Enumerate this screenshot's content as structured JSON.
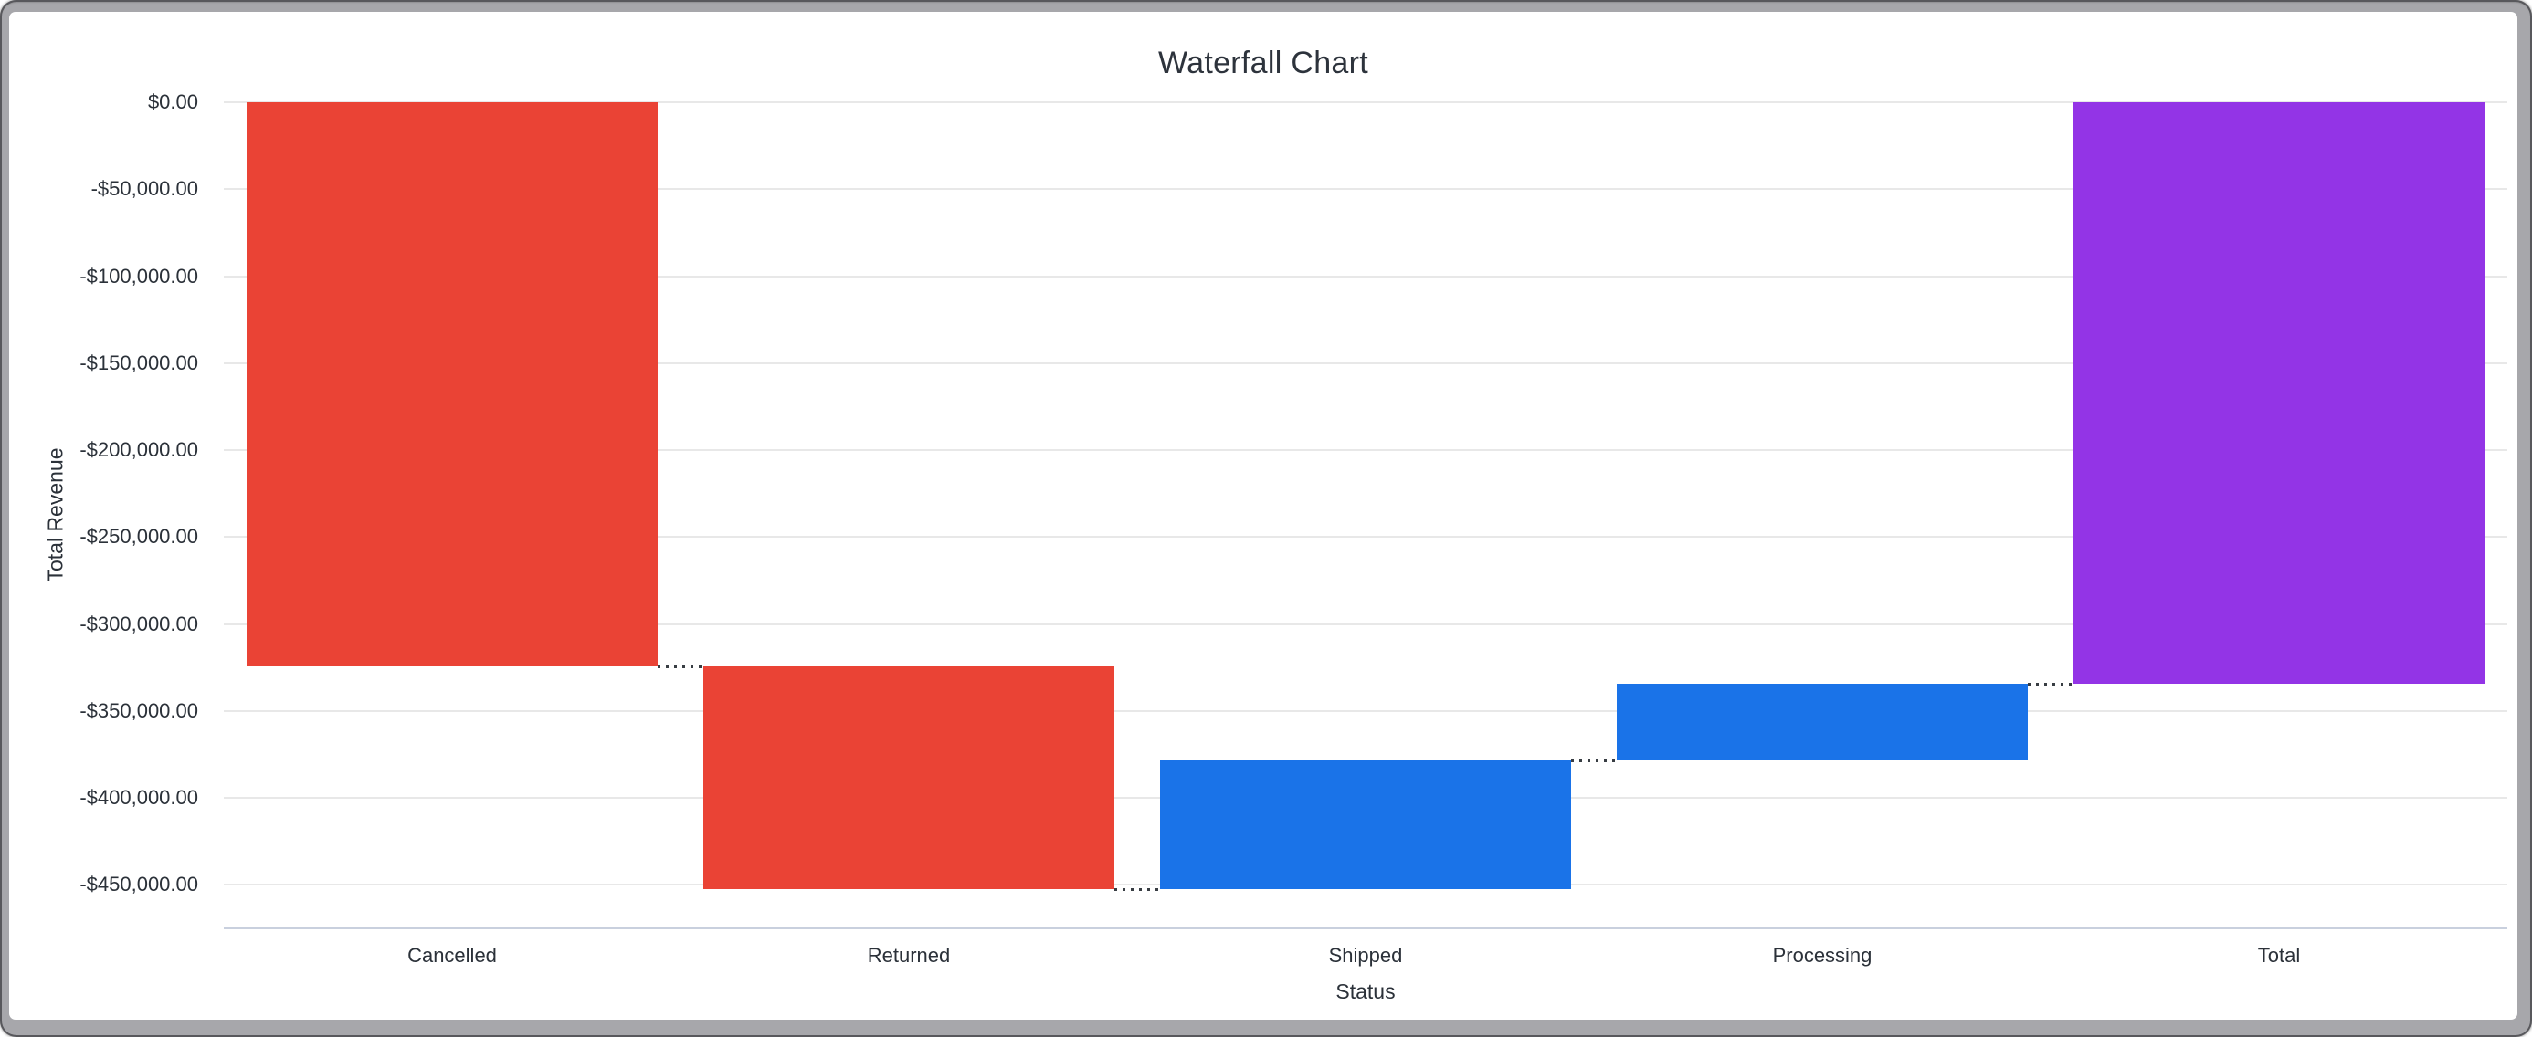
{
  "chart_data": {
    "type": "bar",
    "variant": "waterfall",
    "title": "Waterfall Chart",
    "xlabel": "Status",
    "ylabel": "Total Revenue",
    "categories": [
      "Cancelled",
      "Returned",
      "Shipped",
      "Processing",
      "Total"
    ],
    "values": [
      -324400,
      -127800,
      73600,
      44500,
      -334100
    ],
    "bars": [
      {
        "category": "Cancelled",
        "value": -324400,
        "role": "decrease",
        "start": 0,
        "end": -324400
      },
      {
        "category": "Returned",
        "value": -127800,
        "role": "decrease",
        "start": -324400,
        "end": -452200
      },
      {
        "category": "Shipped",
        "value": 73600,
        "role": "increase",
        "start": -452200,
        "end": -378600
      },
      {
        "category": "Processing",
        "value": 44500,
        "role": "increase",
        "start": -378600,
        "end": -334100
      },
      {
        "category": "Total",
        "value": -334100,
        "role": "total",
        "start": 0,
        "end": -334100
      }
    ],
    "y_ticks": [
      {
        "value": 0,
        "label": "$0.00"
      },
      {
        "value": -50000,
        "label": "-$50,000.00"
      },
      {
        "value": -100000,
        "label": "-$100,000.00"
      },
      {
        "value": -150000,
        "label": "-$150,000.00"
      },
      {
        "value": -200000,
        "label": "-$200,000.00"
      },
      {
        "value": -250000,
        "label": "-$250,000.00"
      },
      {
        "value": -300000,
        "label": "-$300,000.00"
      },
      {
        "value": -350000,
        "label": "-$350,000.00"
      },
      {
        "value": -400000,
        "label": "-$400,000.00"
      },
      {
        "value": -450000,
        "label": "-$450,000.00"
      }
    ],
    "ylim": [
      -475000,
      0
    ],
    "grid": true,
    "legend": false,
    "connector_style": "dotted",
    "colors": {
      "decrease": "#ea4335",
      "increase": "#1a73e8",
      "total": "#9334e6",
      "axis_line": "#c9d0de",
      "gridline": "#e8e8e8",
      "connector": "#383d43",
      "text": "#2b3139"
    }
  }
}
